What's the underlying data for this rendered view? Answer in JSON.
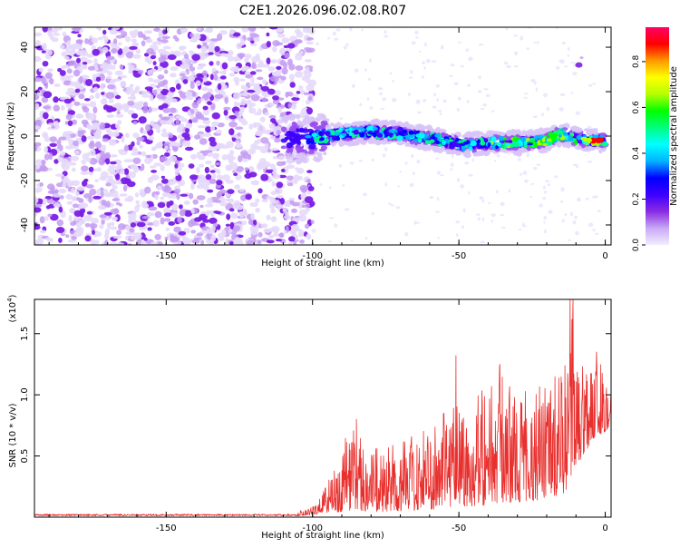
{
  "title": "C2E1.2026.096.02.08.R07",
  "chart_data": [
    {
      "type": "heatmap",
      "name": "spectrogram",
      "xlabel": "Height of straight line (km)",
      "ylabel": "Frequency (Hz)",
      "xlim": [
        -195,
        2
      ],
      "ylim": [
        -49,
        49
      ],
      "xticks": [
        -150,
        -100,
        -50,
        0
      ],
      "xtick_labels": [
        "-150",
        "-100",
        "-50",
        "0"
      ],
      "yticks": [
        -40,
        -20,
        0,
        20,
        40
      ],
      "ytick_labels": [
        "-40",
        "-20",
        "0",
        "20",
        "40"
      ],
      "ridge": {
        "description": "Main signal ridge (frequency vs height)",
        "x": [
          -110,
          -100,
          -90,
          -80,
          -70,
          -60,
          -52,
          -48,
          -40,
          -30,
          -20,
          -15,
          -10,
          -5,
          0
        ],
        "y": [
          -1,
          -1,
          1,
          2,
          1,
          -1,
          -3,
          -4,
          -3,
          -3,
          -2,
          1,
          -1,
          -2,
          -2
        ]
      },
      "outlier_blob": {
        "x": -9,
        "y": 32
      },
      "noise_region": {
        "x_from": -195,
        "x_to": -100,
        "y_from": -49,
        "y_to": 49
      },
      "colorbar": {
        "label": "Normalized spectral amplitude",
        "range": [
          0.0,
          0.95
        ],
        "ticks": [
          0.0,
          0.2,
          0.4,
          0.6,
          0.8
        ],
        "tick_labels": [
          "0.0",
          "0.2",
          "0.4",
          "0.6",
          "0.8"
        ],
        "colors": [
          "#f2eeff",
          "#c9a8f5",
          "#8a2be2",
          "#3c00ff",
          "#0000ff",
          "#00b4ff",
          "#00ffff",
          "#00ff80",
          "#00ff00",
          "#b4ff00",
          "#ffff00",
          "#ff9900",
          "#ff0000",
          "#ff0066"
        ]
      }
    },
    {
      "type": "line",
      "name": "snr",
      "xlabel": "Height of straight line (km)",
      "ylabel": "SNR (10 * v/v)",
      "yunit_label": "(x10",
      "yunit_exponent": "4",
      "yunit_close": ")",
      "xlim": [
        -195,
        2
      ],
      "ylim": [
        0,
        1.78
      ],
      "xticks": [
        -150,
        -100,
        -50,
        0
      ],
      "xtick_labels": [
        "-150",
        "-100",
        "-50",
        "0"
      ],
      "yticks": [
        0.5,
        1.0,
        1.5
      ],
      "ytick_labels": [
        "0.5",
        "1.0",
        "1.5"
      ],
      "color": "#e8302e",
      "envelope": {
        "x": [
          -195,
          -110,
          -100,
          -92,
          -88,
          -85,
          -80,
          -70,
          -60,
          -53,
          -51,
          -48,
          -40,
          -36,
          -30,
          -20,
          -14,
          -11,
          -9,
          -5,
          0,
          2
        ],
        "max": [
          0.03,
          0.03,
          0.08,
          0.4,
          0.7,
          0.8,
          0.55,
          0.6,
          0.75,
          0.9,
          1.32,
          0.85,
          1.1,
          1.25,
          1.0,
          1.1,
          1.2,
          1.78,
          1.3,
          1.35,
          1.2,
          1.25
        ],
        "min": [
          0.0,
          0.0,
          0.02,
          0.04,
          0.05,
          0.06,
          0.04,
          0.05,
          0.06,
          0.08,
          0.1,
          0.08,
          0.1,
          0.12,
          0.12,
          0.15,
          0.2,
          0.3,
          0.45,
          0.6,
          0.7,
          0.75
        ]
      }
    }
  ]
}
